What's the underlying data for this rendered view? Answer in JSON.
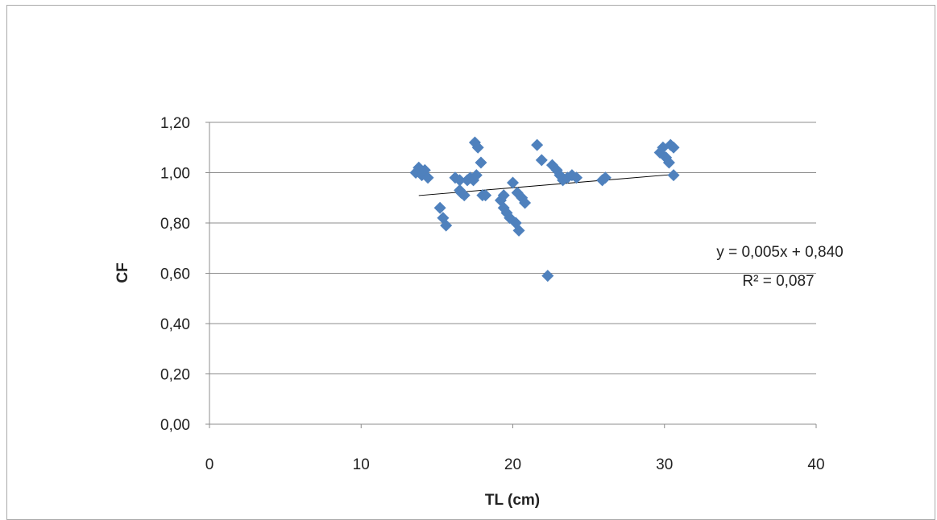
{
  "chart_data": {
    "type": "scatter",
    "xlabel": "TL (cm)",
    "ylabel": "CF",
    "xlim": [
      0,
      40
    ],
    "ylim": [
      0,
      1.2
    ],
    "x_ticks": [
      "0",
      "10",
      "20",
      "30",
      "40"
    ],
    "y_ticks": [
      "0,00",
      "0,20",
      "0,40",
      "0,60",
      "0,80",
      "1,00",
      "1,20"
    ],
    "grid": true,
    "marker_color": "#4f81bd",
    "trendline_color": "#000000",
    "series": [
      {
        "points": [
          {
            "x": 13.6,
            "y": 1.0
          },
          {
            "x": 13.8,
            "y": 1.02
          },
          {
            "x": 14.0,
            "y": 0.99
          },
          {
            "x": 14.2,
            "y": 1.01
          },
          {
            "x": 14.4,
            "y": 0.98
          },
          {
            "x": 15.2,
            "y": 0.86
          },
          {
            "x": 15.4,
            "y": 0.82
          },
          {
            "x": 15.6,
            "y": 0.79
          },
          {
            "x": 16.2,
            "y": 0.98
          },
          {
            "x": 16.5,
            "y": 0.97
          },
          {
            "x": 16.5,
            "y": 0.93
          },
          {
            "x": 16.6,
            "y": 0.92
          },
          {
            "x": 16.8,
            "y": 0.91
          },
          {
            "x": 17.0,
            "y": 0.97
          },
          {
            "x": 17.2,
            "y": 0.98
          },
          {
            "x": 17.4,
            "y": 0.97
          },
          {
            "x": 17.5,
            "y": 1.12
          },
          {
            "x": 17.7,
            "y": 1.1
          },
          {
            "x": 17.6,
            "y": 0.99
          },
          {
            "x": 17.9,
            "y": 1.04
          },
          {
            "x": 18.0,
            "y": 0.91
          },
          {
            "x": 18.2,
            "y": 0.91
          },
          {
            "x": 19.2,
            "y": 0.89
          },
          {
            "x": 19.4,
            "y": 0.91
          },
          {
            "x": 19.4,
            "y": 0.86
          },
          {
            "x": 19.6,
            "y": 0.84
          },
          {
            "x": 19.8,
            "y": 0.82
          },
          {
            "x": 20.0,
            "y": 0.96
          },
          {
            "x": 20.2,
            "y": 0.8
          },
          {
            "x": 20.3,
            "y": 0.92
          },
          {
            "x": 20.4,
            "y": 0.77
          },
          {
            "x": 20.6,
            "y": 0.9
          },
          {
            "x": 20.8,
            "y": 0.88
          },
          {
            "x": 21.6,
            "y": 1.11
          },
          {
            "x": 21.9,
            "y": 1.05
          },
          {
            "x": 22.3,
            "y": 0.59
          },
          {
            "x": 22.6,
            "y": 1.03
          },
          {
            "x": 22.9,
            "y": 1.01
          },
          {
            "x": 23.1,
            "y": 0.99
          },
          {
            "x": 23.3,
            "y": 0.97
          },
          {
            "x": 23.6,
            "y": 0.98
          },
          {
            "x": 23.9,
            "y": 0.99
          },
          {
            "x": 24.2,
            "y": 0.98
          },
          {
            "x": 25.9,
            "y": 0.97
          },
          {
            "x": 26.1,
            "y": 0.98
          },
          {
            "x": 29.7,
            "y": 1.08
          },
          {
            "x": 29.9,
            "y": 1.1
          },
          {
            "x": 30.1,
            "y": 1.06
          },
          {
            "x": 30.3,
            "y": 1.04
          },
          {
            "x": 30.4,
            "y": 1.11
          },
          {
            "x": 30.6,
            "y": 1.1
          },
          {
            "x": 30.6,
            "y": 0.99
          }
        ]
      }
    ],
    "trendline": {
      "equation": "y = 0,005x + 0,840",
      "r_squared": "R² = 0,087",
      "slope": 0.005,
      "intercept": 0.84,
      "x_range": [
        13.8,
        30.6
      ]
    }
  }
}
